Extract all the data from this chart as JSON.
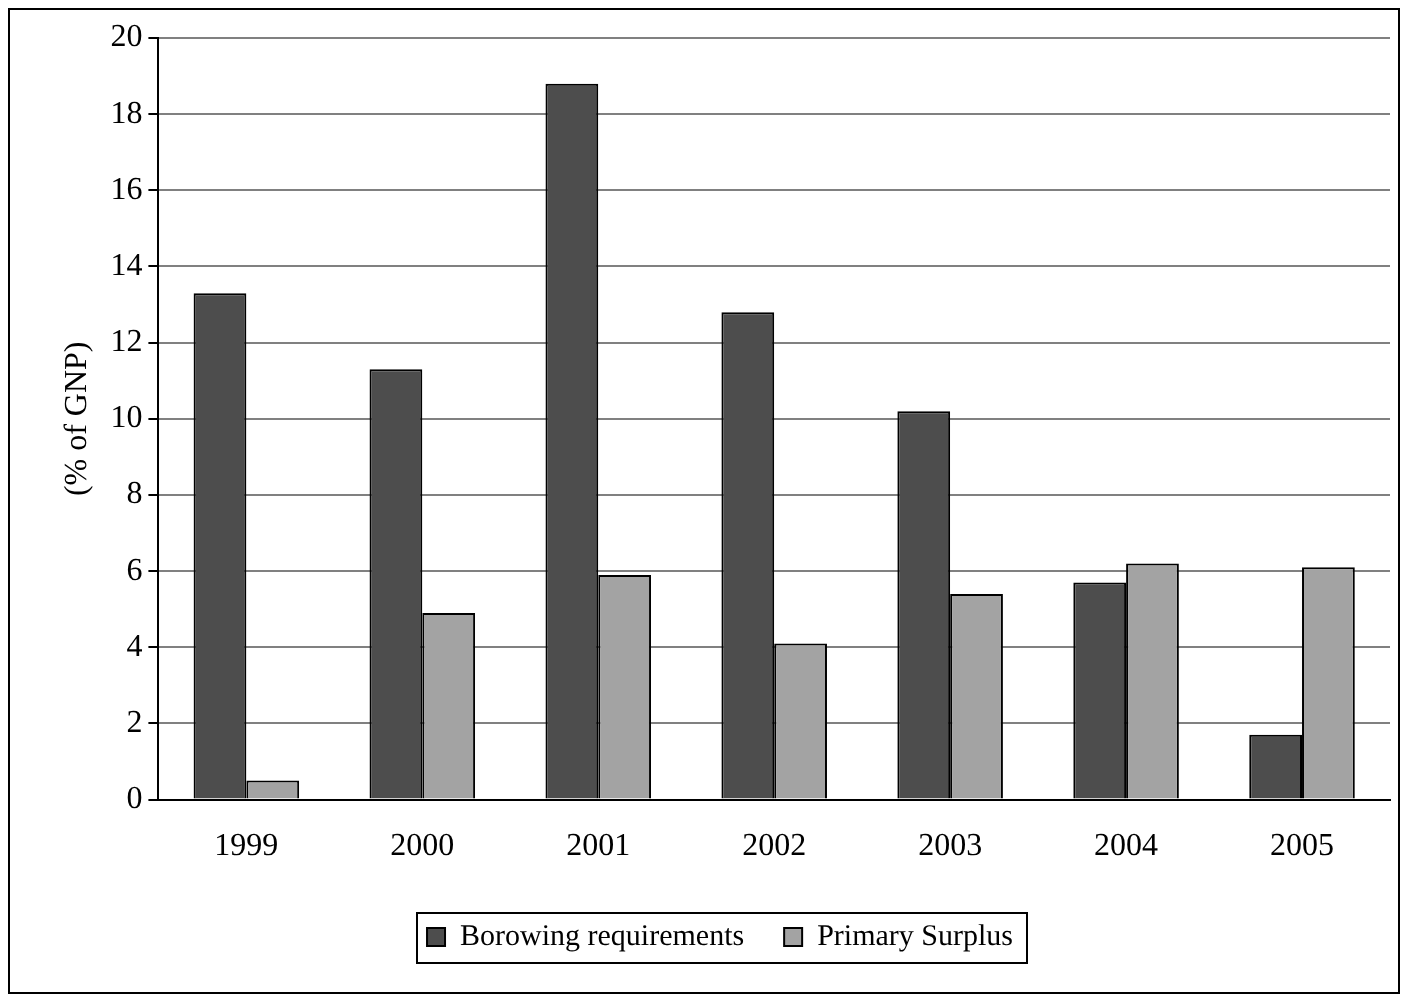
{
  "chart_data": {
    "type": "bar",
    "ylabel": "(% of GNP)",
    "categories": [
      "1999",
      "2000",
      "2001",
      "2002",
      "2003",
      "2004",
      "2005"
    ],
    "series": [
      {
        "name": "Borowing requirements",
        "color": "#4d4d4d",
        "values": [
          13.3,
          11.3,
          18.8,
          12.8,
          10.2,
          5.7,
          1.7
        ]
      },
      {
        "name": "Primary Surplus",
        "color": "#a3a3a3",
        "values": [
          0.5,
          4.9,
          5.9,
          4.1,
          5.4,
          6.2,
          6.1
        ]
      }
    ],
    "ylim": [
      0,
      20
    ],
    "yticks": [
      0,
      2,
      4,
      6,
      8,
      10,
      12,
      14,
      16,
      18,
      20
    ],
    "grid": "y",
    "legend": "bottom"
  }
}
